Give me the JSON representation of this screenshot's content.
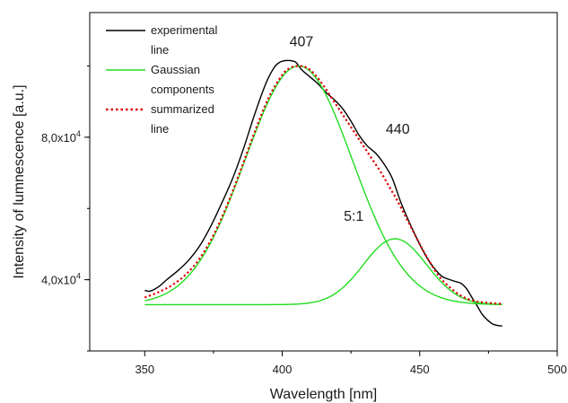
{
  "chart_data": {
    "type": "line",
    "title": "",
    "xlabel": "Wavelength [nm]",
    "ylabel": "Intensity of lumnescence [a.u.]",
    "xlim": [
      330,
      500
    ],
    "ylim": [
      20000,
      115000
    ],
    "x_ticks": [
      350,
      400,
      450,
      500
    ],
    "x_tick_labels": [
      "350",
      "400",
      "450",
      "500"
    ],
    "y_ticks": [
      40000,
      80000
    ],
    "y_tick_labels": [
      {
        "base": "4,0x10",
        "exp": "4"
      },
      {
        "base": "8,0x10",
        "exp": "4"
      }
    ],
    "grid": false,
    "legend": {
      "placement": "top-left",
      "entries": [
        {
          "lines": [
            "experimental",
            "line"
          ],
          "color": "#000000",
          "style": "solid"
        },
        {
          "lines": [
            "Gaussian",
            "components"
          ],
          "color": "#22dd22",
          "style": "solid"
        },
        {
          "lines": [
            "summarized",
            "line"
          ],
          "color": "#dd0000",
          "style": "dotted"
        }
      ]
    },
    "annotations": [
      {
        "text": "407",
        "x": 407,
        "y": 105500
      },
      {
        "text": "440",
        "x": 442,
        "y": 81000
      },
      {
        "text": "5:1",
        "x": 426,
        "y": 56500
      }
    ],
    "series": [
      {
        "name": "experimental line",
        "color": "#000000",
        "style": "solid",
        "x": [
          350,
          352,
          355,
          358,
          362,
          366,
          370,
          374,
          378,
          382,
          386,
          390,
          394,
          397,
          399,
          401,
          403,
          405,
          407,
          410,
          413,
          416,
          419,
          422,
          425,
          428,
          431,
          434,
          437,
          440,
          443,
          446,
          449,
          452,
          455,
          458,
          461,
          463,
          465,
          467,
          469,
          471,
          473,
          476,
          478,
          480
        ],
        "y": [
          37000,
          36800,
          38000,
          40000,
          42500,
          45500,
          49500,
          55000,
          61500,
          68500,
          77000,
          86500,
          95000,
          99500,
          101000,
          101500,
          101500,
          101000,
          99000,
          97000,
          95000,
          92500,
          90500,
          88000,
          84500,
          80500,
          77500,
          75500,
          72500,
          68500,
          62000,
          56500,
          51500,
          47000,
          43500,
          41000,
          40000,
          39500,
          39000,
          37500,
          35000,
          32500,
          30000,
          27800,
          27200,
          27000
        ]
      },
      {
        "name": "Gaussian component 407",
        "color": "#22dd22",
        "style": "solid",
        "gaussian": {
          "center": 406,
          "sigma": 19.5,
          "amplitude": 67000,
          "baseline": 33000
        },
        "x_range": [
          350,
          480
        ]
      },
      {
        "name": "Gaussian component 440",
        "color": "#22dd22",
        "style": "solid",
        "gaussian": {
          "center": 441,
          "sigma": 11.5,
          "amplitude": 18500,
          "baseline": 33000
        },
        "x_range": [
          350,
          480
        ]
      },
      {
        "name": "summarized line",
        "color": "#dd0000",
        "style": "dotted",
        "x": [
          350,
          355,
          360,
          365,
          370,
          375,
          380,
          385,
          390,
          395,
          400,
          403,
          406,
          409,
          412,
          415,
          418,
          421,
          424,
          427,
          430,
          433,
          436,
          439,
          442,
          445,
          448,
          451,
          454,
          457,
          460,
          465,
          470,
          475,
          480
        ],
        "y": [
          35000,
          36500,
          38500,
          41500,
          46000,
          52500,
          61000,
          71000,
          81500,
          91000,
          97500,
          99500,
          100000,
          99500,
          97500,
          94500,
          91000,
          87500,
          84000,
          80500,
          77000,
          73500,
          70000,
          66000,
          62000,
          57500,
          53000,
          48500,
          44500,
          41000,
          38500,
          35500,
          34000,
          33500,
          33200
        ]
      }
    ]
  }
}
